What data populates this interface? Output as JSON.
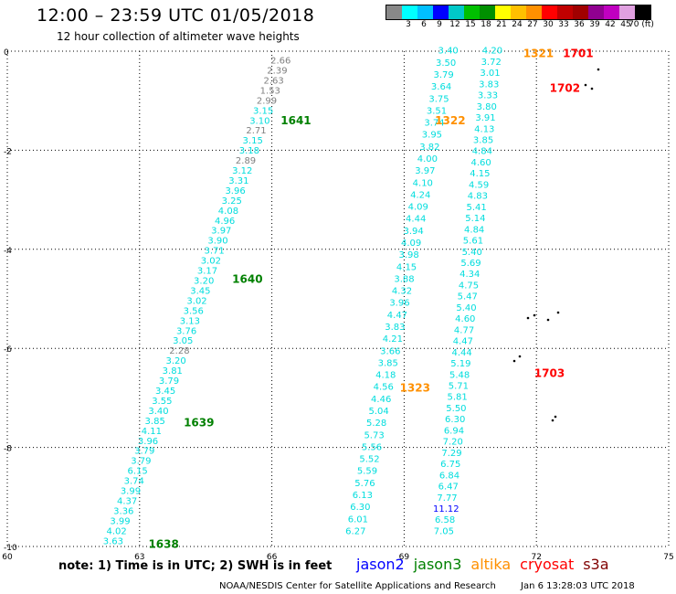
{
  "header": {
    "title": "12:00 – 23:59 UTC 01/05/2018",
    "subtitle": "12 hour collection of altimeter wave heights"
  },
  "colorbar": {
    "colors": [
      "#888888",
      "#00ffff",
      "#00bfff",
      "#0000ff",
      "#00c8c8",
      "#00c000",
      "#009000",
      "#ffff00",
      "#ffc000",
      "#ff9000",
      "#ff0000",
      "#c00000",
      "#a00000",
      "#900090",
      "#c000c0",
      "#e0a0e0",
      "#000000"
    ],
    "ticks": [
      "3",
      "6",
      "9",
      "12",
      "15",
      "18",
      "21",
      "24",
      "27",
      "30",
      "33",
      "36",
      "39",
      "42",
      "45",
      "70 (ft)"
    ]
  },
  "axes": {
    "x_ticks": [
      "60",
      "63",
      "66",
      "69",
      "72",
      "75"
    ],
    "y_ticks": [
      "0",
      "-2",
      "-4",
      "-6",
      "-8",
      "-10"
    ],
    "xlim": [
      60,
      75
    ],
    "ylim": [
      -10,
      0
    ]
  },
  "tracks": [
    {
      "id": "t1",
      "x0": 62.4,
      "y0": -9.95,
      "x1": 66.2,
      "y1": -0.25,
      "values": [
        "3.63",
        "4.02",
        "3.99",
        "3.36",
        "4.37",
        "3.99",
        "3.74",
        "6.15",
        "3.79",
        "3.79",
        "3.96",
        "4.11",
        "3.85",
        "3.40",
        "3.55",
        "3.45",
        "3.79",
        "3.81",
        "3.20",
        "2.28",
        "3.05",
        "3.76",
        "3.13",
        "3.56",
        "3.02",
        "3.45",
        "3.20",
        "3.17",
        "3.02",
        "3.71",
        "3.90",
        "3.97",
        "4.96",
        "4.08",
        "3.25",
        "3.96",
        "3.31",
        "3.12",
        "2.89",
        "3.18",
        "3.15",
        "2.71",
        "3.10",
        "3.15",
        "2.99",
        "1.53",
        "2.63",
        "2.39",
        "2.66"
      ],
      "colors": [
        "c",
        "c",
        "c",
        "c",
        "c",
        "c",
        "c",
        "c",
        "c",
        "c",
        "c",
        "c",
        "c",
        "c",
        "c",
        "c",
        "c",
        "c",
        "c",
        "g",
        "c",
        "c",
        "c",
        "c",
        "c",
        "c",
        "c",
        "c",
        "c",
        "c",
        "c",
        "c",
        "c",
        "c",
        "c",
        "c",
        "c",
        "c",
        "g",
        "c",
        "c",
        "g",
        "c",
        "c",
        "g",
        "g",
        "g",
        "g",
        "g"
      ]
    },
    {
      "id": "t2",
      "x0": 67.9,
      "y0": -9.75,
      "x1": 70.0,
      "y1": -0.05,
      "values": [
        "6.27",
        "6.01",
        "6.30",
        "6.13",
        "5.76",
        "5.59",
        "5.52",
        "5.56",
        "5.73",
        "5.28",
        "5.04",
        "4.46",
        "4.56",
        "4.18",
        "3.85",
        "3.66",
        "4.21",
        "3.83",
        "4.47",
        "3.96",
        "4.32",
        "3.88",
        "4.15",
        "3.98",
        "4.09",
        "3.94",
        "4.44",
        "4.09",
        "4.24",
        "4.10",
        "3.97",
        "4.00",
        "3.82",
        "3.95",
        "3.74",
        "3.51",
        "3.75",
        "3.64",
        "3.79",
        "3.50",
        "3.40"
      ],
      "colors": [
        "c",
        "c",
        "c",
        "c",
        "c",
        "c",
        "c",
        "c",
        "c",
        "c",
        "c",
        "c",
        "c",
        "c",
        "c",
        "c",
        "c",
        "c",
        "c",
        "c",
        "c",
        "c",
        "c",
        "c",
        "c",
        "c",
        "c",
        "c",
        "c",
        "c",
        "c",
        "c",
        "c",
        "c",
        "c",
        "c",
        "c",
        "c",
        "c",
        "c",
        "c"
      ]
    },
    {
      "id": "t3",
      "x0": 69.9,
      "y0": -9.75,
      "x1": 71.0,
      "y1": -0.05,
      "values": [
        "7.05",
        "6.58",
        "11.12",
        "7.77",
        "6.47",
        "6.84",
        "6.75",
        "7.29",
        "7.20",
        "6.94",
        "6.30",
        "5.50",
        "5.81",
        "5.71",
        "5.48",
        "5.19",
        "4.44",
        "4.47",
        "4.77",
        "4.60",
        "5.40",
        "5.47",
        "4.75",
        "4.34",
        "5.69",
        "5.40",
        "5.61",
        "4.84",
        "5.14",
        "5.41",
        "4.83",
        "4.59",
        "4.15",
        "4.60",
        "4.84",
        "3.85",
        "4.13",
        "3.91",
        "3.80",
        "3.33",
        "3.83",
        "3.01",
        "3.72",
        "4.20"
      ],
      "colors": [
        "c",
        "c",
        "b",
        "c",
        "c",
        "c",
        "c",
        "c",
        "c",
        "c",
        "c",
        "c",
        "c",
        "c",
        "c",
        "c",
        "c",
        "c",
        "c",
        "c",
        "c",
        "c",
        "c",
        "c",
        "c",
        "c",
        "c",
        "c",
        "c",
        "c",
        "c",
        "c",
        "c",
        "c",
        "c",
        "c",
        "c",
        "c",
        "c",
        "c",
        "c",
        "c",
        "c",
        "c"
      ]
    }
  ],
  "pass_labels": [
    {
      "text": "1641",
      "lon": 66.2,
      "lat": -1.4,
      "color": "#008000"
    },
    {
      "text": "1640",
      "lon": 65.1,
      "lat": -4.6,
      "color": "#008000"
    },
    {
      "text": "1639",
      "lon": 64.0,
      "lat": -7.5,
      "color": "#008000"
    },
    {
      "text": "1638",
      "lon": 63.2,
      "lat": -9.95,
      "color": "#008000"
    },
    {
      "text": "1321",
      "lon": 71.7,
      "lat": -0.05,
      "color": "#ff9000"
    },
    {
      "text": "1322",
      "lon": 69.7,
      "lat": -1.4,
      "color": "#ff9000"
    },
    {
      "text": "1323",
      "lon": 68.9,
      "lat": -6.8,
      "color": "#ff9000"
    },
    {
      "text": "1701",
      "lon": 72.6,
      "lat": -0.05,
      "color": "#ff0000"
    },
    {
      "text": "1702",
      "lon": 72.3,
      "lat": -0.75,
      "color": "#ff0000"
    },
    {
      "text": "1703",
      "lon": 71.95,
      "lat": -6.5,
      "color": "#ff0000"
    }
  ],
  "note": "note:  1) Time is in UTC;  2) SWH is in feet",
  "satellites": [
    {
      "name": "jason2",
      "color": "#0000ff"
    },
    {
      "name": "jason3",
      "color": "#008000"
    },
    {
      "name": "altika",
      "color": "#ff9000"
    },
    {
      "name": "cryosat",
      "color": "#ff0000"
    },
    {
      "name": "s3a",
      "color": "#800000"
    }
  ],
  "footer": {
    "credit": "NOAA/NESDIS Center for Satellite Applications and Research",
    "timestamp": "Jan  6 13:28:03 UTC 2018"
  },
  "value_colors": {
    "c": "#00dddd",
    "g": "#808080",
    "b": "#0000ff"
  }
}
